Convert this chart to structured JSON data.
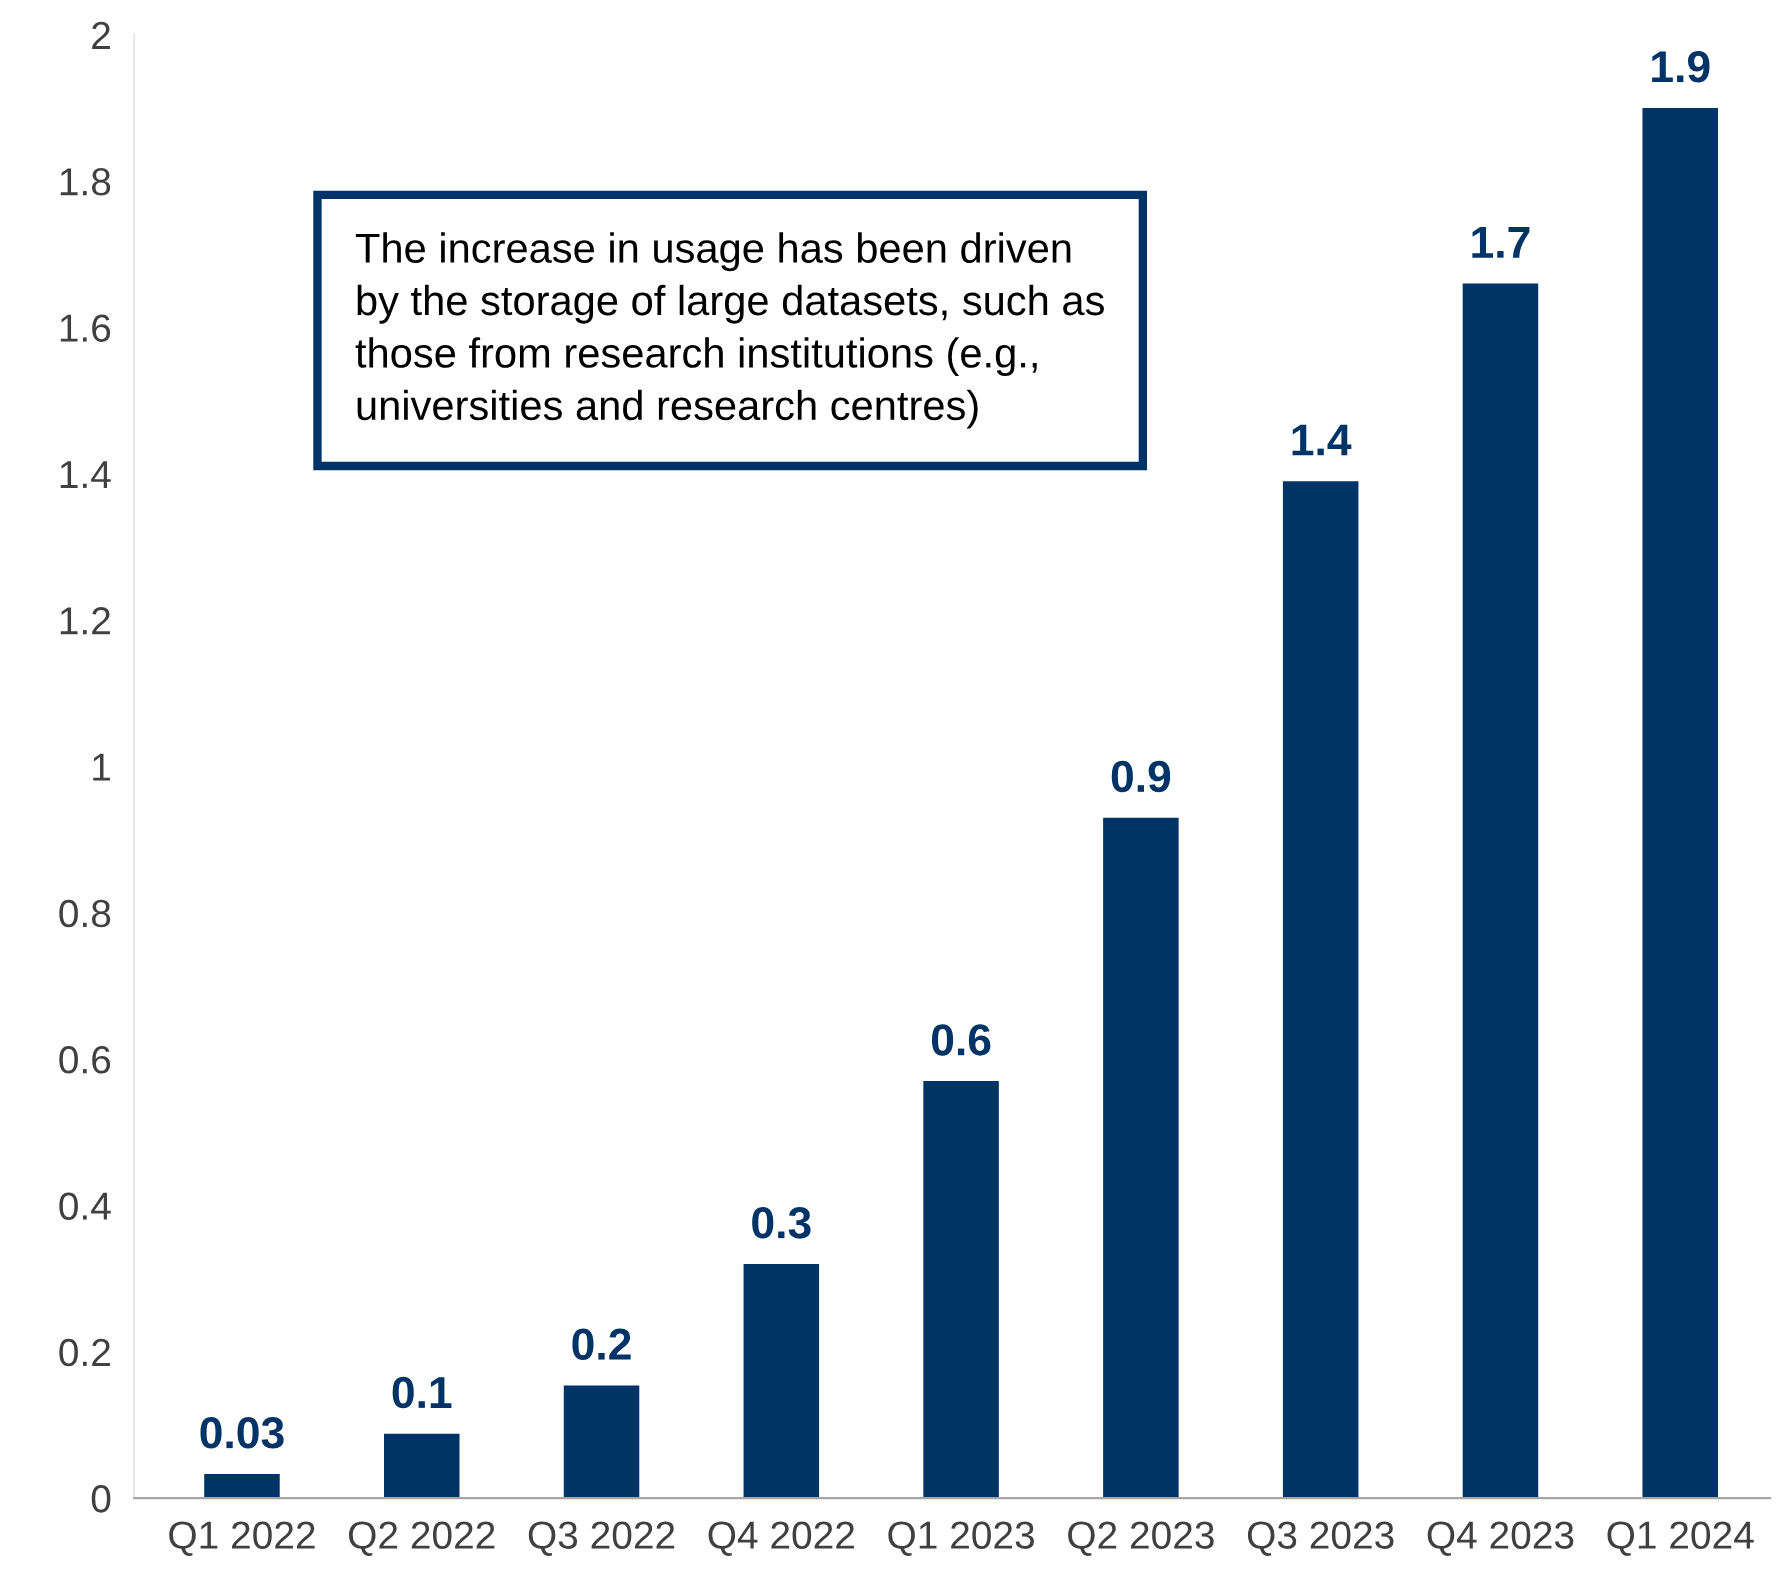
{
  "chart_data": {
    "type": "bar",
    "categories": [
      "Q1 2022",
      "Q2 2022",
      "Q3 2022",
      "Q4 2022",
      "Q1 2023",
      "Q2 2023",
      "Q3 2023",
      "Q4 2023",
      "Q1 2024"
    ],
    "values": [
      0.033,
      0.088,
      0.154,
      0.32,
      0.57,
      0.93,
      1.39,
      1.66,
      1.9
    ],
    "value_labels": [
      "0.03",
      "0.1",
      "0.2",
      "0.3",
      "0.6",
      "0.9",
      "1.4",
      "1.7",
      "1.9"
    ],
    "color": "#003366",
    "ylim": [
      0,
      2
    ],
    "yticks": [
      0,
      0.2,
      0.4,
      0.6,
      0.8,
      1,
      1.2,
      1.4,
      1.6,
      1.8,
      2
    ],
    "grid": false,
    "legend": false,
    "annotations": [
      "The increase in usage has been driven\nby the storage of large datasets, such as\nthose from research institutions (e.g.,\nuniversities and research centres)"
    ]
  }
}
